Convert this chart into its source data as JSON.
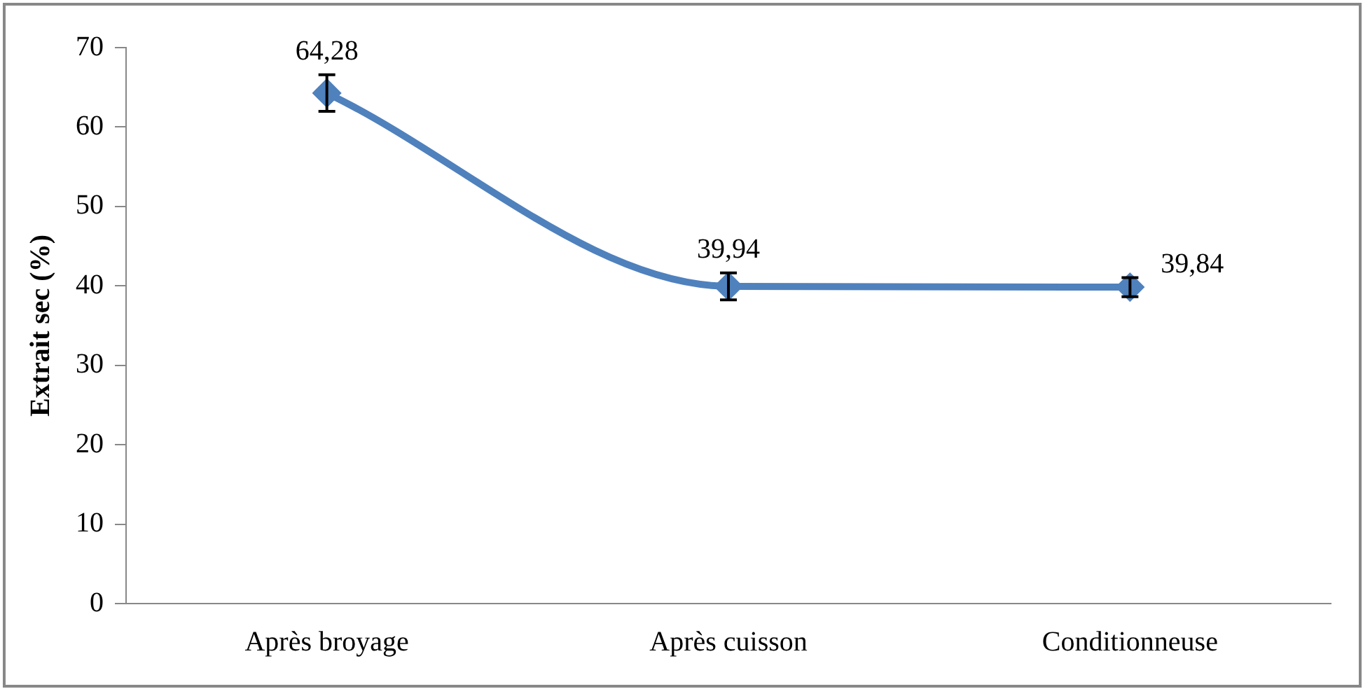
{
  "chart_data": {
    "type": "line",
    "ylabel": "Extrait sec (%)",
    "categories": [
      "Après broyage",
      "Après cuisson",
      "Conditionneuse"
    ],
    "series": [
      {
        "color": "#4f81bd",
        "values": [
          64.28,
          39.94,
          39.84
        ],
        "errors": [
          2.3,
          1.7,
          1.2
        ],
        "value_labels": [
          "64,28",
          "39,94",
          "39,84"
        ]
      }
    ],
    "ylim": [
      0,
      70
    ],
    "yticks": [
      0,
      10,
      20,
      30,
      40,
      50,
      60,
      70
    ],
    "grid": false,
    "legend": false,
    "marker": "diamond",
    "line_style": "solid"
  }
}
